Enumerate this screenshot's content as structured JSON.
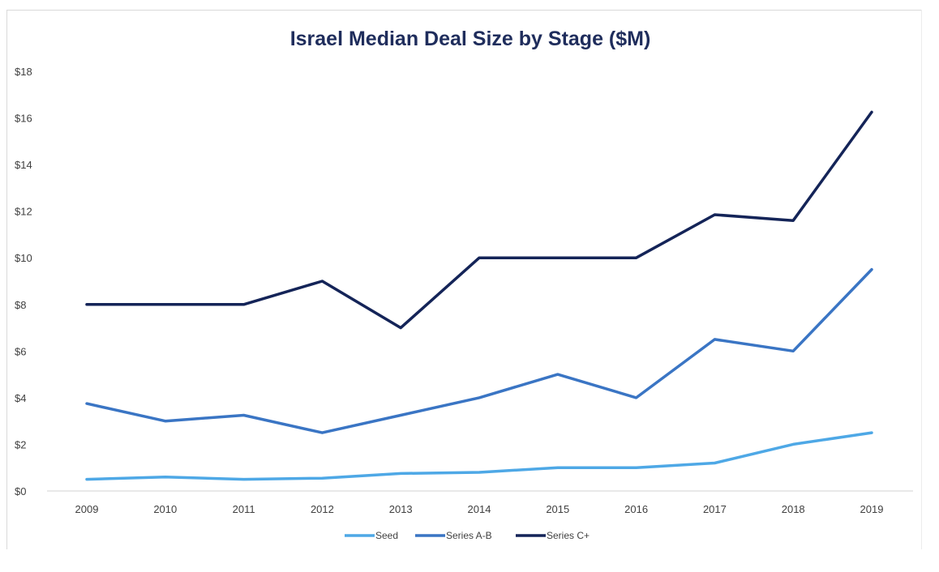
{
  "chart_data": {
    "type": "line",
    "title": "Israel Median Deal Size by Stage ($M)",
    "xlabel": "",
    "ylabel": "",
    "x": [
      "2009",
      "2010",
      "2011",
      "2012",
      "2013",
      "2014",
      "2015",
      "2016",
      "2017",
      "2018",
      "2019"
    ],
    "ylim": [
      0,
      18
    ],
    "y_ticks": [
      "$0",
      "$2",
      "$4",
      "$6",
      "$8",
      "$10",
      "$12",
      "$14",
      "$16",
      "$18"
    ],
    "grid": false,
    "legend_position": "bottom",
    "series": [
      {
        "name": "Seed",
        "color": "#4ea8e6",
        "values": [
          0.5,
          0.6,
          0.5,
          0.55,
          0.75,
          0.8,
          1.0,
          1.0,
          1.2,
          2.0,
          2.5
        ]
      },
      {
        "name": "Series A-B",
        "color": "#3a75c4",
        "values": [
          3.75,
          3.0,
          3.25,
          2.5,
          3.25,
          4.0,
          5.0,
          4.0,
          6.5,
          6.0,
          9.5
        ]
      },
      {
        "name": "Series C+",
        "color": "#142458",
        "values": [
          8.0,
          8.0,
          8.0,
          9.0,
          7.0,
          10.0,
          10.0,
          10.0,
          11.85,
          11.6,
          16.25
        ]
      }
    ]
  }
}
